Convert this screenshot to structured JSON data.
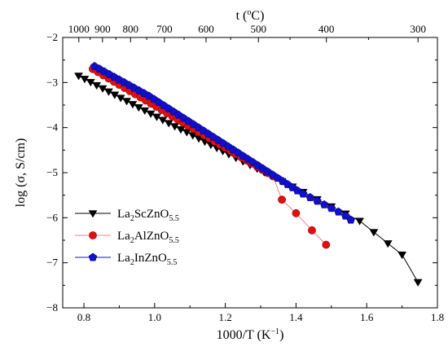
{
  "chart_data": {
    "type": "line",
    "xlabel": {
      "main": "1000/T (K",
      "sup": "−1",
      "close": ")"
    },
    "ylabel": {
      "main": "log (σ, S/cm)"
    },
    "top_label": {
      "main": "t (",
      "sup": "o",
      "close": "C)"
    },
    "xlim": [
      0.74,
      1.8
    ],
    "ylim": [
      -8,
      -2
    ],
    "x_ticks": [
      0.8,
      1.0,
      1.2,
      1.4,
      1.6,
      1.8
    ],
    "x_tick_labels": [
      "0.8",
      "1.0",
      "1.2",
      "1.4",
      "1.6",
      "1.8"
    ],
    "y_ticks": [
      -2,
      -3,
      -4,
      -5,
      -6,
      -7,
      -8
    ],
    "y_tick_labels": [
      "−2",
      "−3",
      "−4",
      "−5",
      "−6",
      "−7",
      "−8"
    ],
    "top_ticks": [
      1000,
      900,
      800,
      700,
      600,
      500,
      400,
      300
    ],
    "top_tick_labels": [
      "1000",
      "900",
      "800",
      "700",
      "600",
      "500",
      "400",
      "300"
    ],
    "legend_position": "bottom-left",
    "series": [
      {
        "name_parts": [
          "La",
          "2",
          "ScZnO",
          "5.5"
        ],
        "marker": "triangle-down",
        "color": "#000000",
        "line_color": "#000000",
        "x": [
          0.785,
          0.802,
          0.819,
          0.836,
          0.853,
          0.87,
          0.887,
          0.904,
          0.921,
          0.938,
          0.955,
          0.972,
          0.989,
          1.006,
          1.023,
          1.04,
          1.057,
          1.074,
          1.091,
          1.108,
          1.125,
          1.142,
          1.159,
          1.176,
          1.193,
          1.21,
          1.23,
          1.25,
          1.27,
          1.29,
          1.31,
          1.33,
          1.36,
          1.39,
          1.42,
          1.46,
          1.5,
          1.54,
          1.58,
          1.62,
          1.66,
          1.7,
          1.745
        ],
        "y": [
          -2.85,
          -2.92,
          -2.99,
          -3.06,
          -3.13,
          -3.2,
          -3.27,
          -3.34,
          -3.41,
          -3.48,
          -3.55,
          -3.62,
          -3.69,
          -3.76,
          -3.83,
          -3.9,
          -3.97,
          -4.04,
          -4.1,
          -4.17,
          -4.24,
          -4.31,
          -4.38,
          -4.45,
          -4.52,
          -4.59,
          -4.67,
          -4.75,
          -4.83,
          -4.91,
          -4.99,
          -5.07,
          -5.19,
          -5.31,
          -5.43,
          -5.59,
          -5.75,
          -5.91,
          -6.07,
          -6.32,
          -6.57,
          -6.82,
          -7.43
        ]
      },
      {
        "name_parts": [
          "La",
          "2",
          "AlZnO",
          "5.5"
        ],
        "marker": "circle",
        "color": "#e01010",
        "line_color": "#f08080",
        "x": [
          0.825,
          0.84,
          0.855,
          0.87,
          0.885,
          0.9,
          0.915,
          0.93,
          0.945,
          0.96,
          0.975,
          0.99,
          1.005,
          1.02,
          1.035,
          1.05,
          1.065,
          1.08,
          1.095,
          1.11,
          1.125,
          1.14,
          1.155,
          1.17,
          1.185,
          1.2,
          1.215,
          1.23,
          1.245,
          1.26,
          1.275,
          1.29,
          1.305,
          1.32,
          1.335,
          1.36,
          1.4,
          1.445,
          1.485
        ],
        "y": [
          -2.7,
          -2.77,
          -2.84,
          -2.91,
          -2.98,
          -3.05,
          -3.12,
          -3.19,
          -3.26,
          -3.33,
          -3.4,
          -3.47,
          -3.54,
          -3.61,
          -3.68,
          -3.75,
          -3.82,
          -3.89,
          -3.96,
          -4.03,
          -4.1,
          -4.17,
          -4.24,
          -4.31,
          -4.38,
          -4.45,
          -4.52,
          -4.59,
          -4.66,
          -4.73,
          -4.8,
          -4.87,
          -4.94,
          -5.01,
          -5.08,
          -5.6,
          -5.9,
          -6.28,
          -6.6
        ]
      },
      {
        "name_parts": [
          "La",
          "2",
          "InZnO",
          "5.5"
        ],
        "marker": "pentagon",
        "color": "#1010cc",
        "line_color": "#1010cc",
        "x": [
          0.83,
          0.844,
          0.858,
          0.872,
          0.886,
          0.9,
          0.914,
          0.928,
          0.942,
          0.956,
          0.97,
          0.984,
          0.998,
          1.012,
          1.026,
          1.04,
          1.054,
          1.068,
          1.082,
          1.096,
          1.11,
          1.124,
          1.138,
          1.152,
          1.166,
          1.18,
          1.194,
          1.208,
          1.222,
          1.236,
          1.25,
          1.264,
          1.278,
          1.292,
          1.306,
          1.32,
          1.334,
          1.348,
          1.362,
          1.376,
          1.39,
          1.404,
          1.42,
          1.44,
          1.46,
          1.48,
          1.5,
          1.52,
          1.54,
          1.555
        ],
        "y": [
          -2.64,
          -2.7,
          -2.76,
          -2.82,
          -2.88,
          -2.94,
          -3.0,
          -3.06,
          -3.12,
          -3.18,
          -3.24,
          -3.3,
          -3.37,
          -3.44,
          -3.51,
          -3.58,
          -3.65,
          -3.72,
          -3.79,
          -3.86,
          -3.93,
          -4.0,
          -4.07,
          -4.14,
          -4.21,
          -4.28,
          -4.35,
          -4.42,
          -4.49,
          -4.56,
          -4.63,
          -4.7,
          -4.77,
          -4.84,
          -4.91,
          -4.98,
          -5.05,
          -5.12,
          -5.19,
          -5.26,
          -5.33,
          -5.4,
          -5.47,
          -5.55,
          -5.63,
          -5.71,
          -5.79,
          -5.87,
          -5.96,
          -6.05
        ]
      }
    ]
  }
}
